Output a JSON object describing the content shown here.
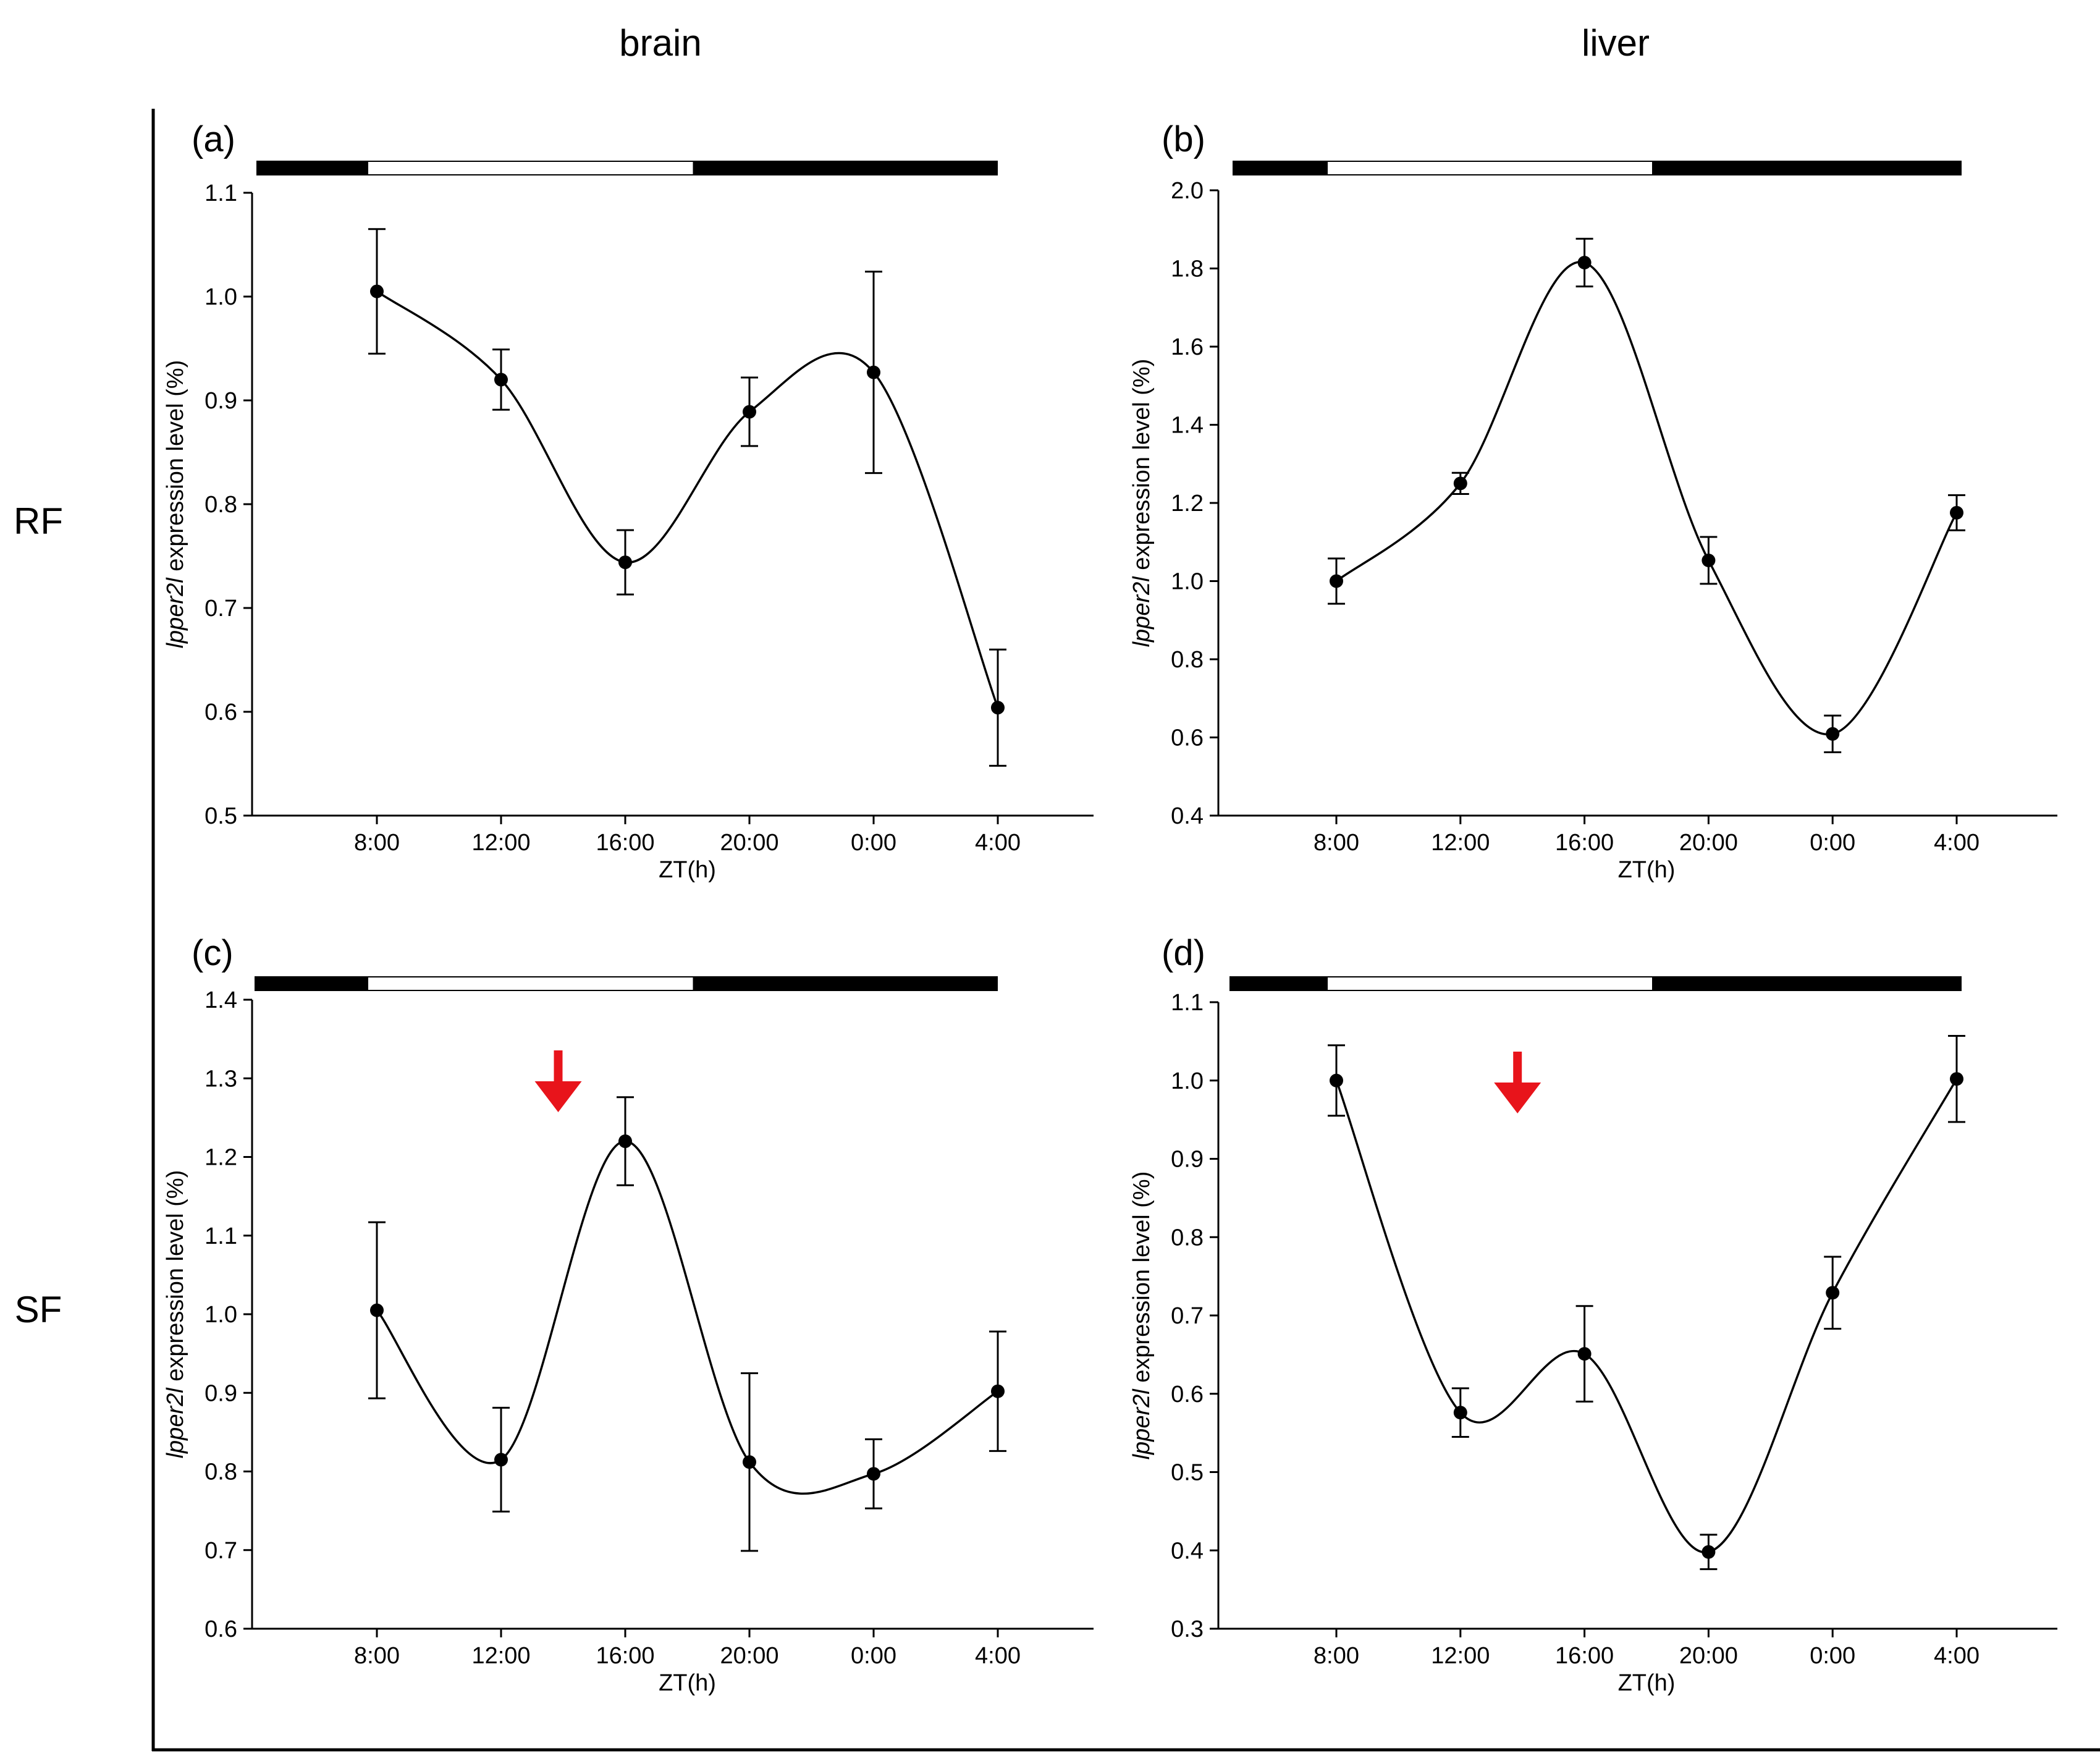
{
  "headers": {
    "col_brain": "brain",
    "col_liver": "liver",
    "row_rf": "RF",
    "row_sf": "SF"
  },
  "colors": {
    "line": "#000000",
    "arrow": "#e8141b",
    "light_bar": "#ffffff",
    "dark_bar": "#000000"
  },
  "chart_data": [
    {
      "type": "line",
      "panel": "(a)",
      "tissue": "brain",
      "condition": "RF",
      "xlabel": "ZT(h)",
      "ylabel_gene": "lpper2l",
      "ylabel_rest": " expression level (%)",
      "ylim": [
        0.5,
        1.1
      ],
      "yticks": [
        0.5,
        0.6,
        0.7,
        0.8,
        0.9,
        1.0,
        1.1
      ],
      "categories": [
        "8:00",
        "12:00",
        "16:00",
        "20:00",
        "0:00",
        "4:00"
      ],
      "values": [
        1.005,
        0.92,
        0.744,
        0.889,
        0.927,
        0.604
      ],
      "errors": [
        0.06,
        0.029,
        0.031,
        0.033,
        0.097,
        0.056
      ],
      "arrow_at": null
    },
    {
      "type": "line",
      "panel": "(b)",
      "tissue": "liver",
      "condition": "RF",
      "xlabel": "ZT(h)",
      "ylabel_gene": "lpper2l",
      "ylabel_rest": " expression level (%)",
      "ylim": [
        0.4,
        2.0
      ],
      "yticks": [
        0.4,
        0.6,
        0.8,
        1.0,
        1.2,
        1.4,
        1.6,
        1.8,
        2.0
      ],
      "categories": [
        "8:00",
        "12:00",
        "16:00",
        "20:00",
        "0:00",
        "4:00"
      ],
      "values": [
        1.0,
        1.25,
        1.815,
        1.053,
        0.609,
        1.175
      ],
      "errors": [
        0.058,
        0.027,
        0.061,
        0.06,
        0.047,
        0.045
      ],
      "arrow_at": null
    },
    {
      "type": "line",
      "panel": "(c)",
      "tissue": "brain",
      "condition": "SF",
      "xlabel": "ZT(h)",
      "ylabel_gene": "lpper2l",
      "ylabel_rest": " expression level (%)",
      "ylim": [
        0.6,
        1.4
      ],
      "yticks": [
        0.6,
        0.7,
        0.8,
        0.9,
        1.0,
        1.1,
        1.2,
        1.3,
        1.4
      ],
      "categories": [
        "8:00",
        "12:00",
        "16:00",
        "20:00",
        "0:00",
        "4:00"
      ],
      "values": [
        1.005,
        0.815,
        1.22,
        0.812,
        0.797,
        0.902
      ],
      "errors": [
        0.112,
        0.066,
        0.056,
        0.113,
        0.044,
        0.076
      ],
      "arrow_at": 1.5
    },
    {
      "type": "line",
      "panel": "(d)",
      "tissue": "liver",
      "condition": "SF",
      "xlabel": "ZT(h)",
      "ylabel_gene": "lpper2l",
      "ylabel_rest": " expression level (%)",
      "ylim": [
        0.3,
        1.1
      ],
      "yticks": [
        0.3,
        0.4,
        0.5,
        0.6,
        0.7,
        0.8,
        0.9,
        1.0,
        1.1
      ],
      "categories": [
        "8:00",
        "12:00",
        "16:00",
        "20:00",
        "0:00",
        "4:00"
      ],
      "values": [
        1.0,
        0.576,
        0.651,
        0.398,
        0.729,
        1.002
      ],
      "errors": [
        0.045,
        0.031,
        0.061,
        0.022,
        0.046,
        0.055
      ],
      "arrow_at": 1.5
    }
  ]
}
